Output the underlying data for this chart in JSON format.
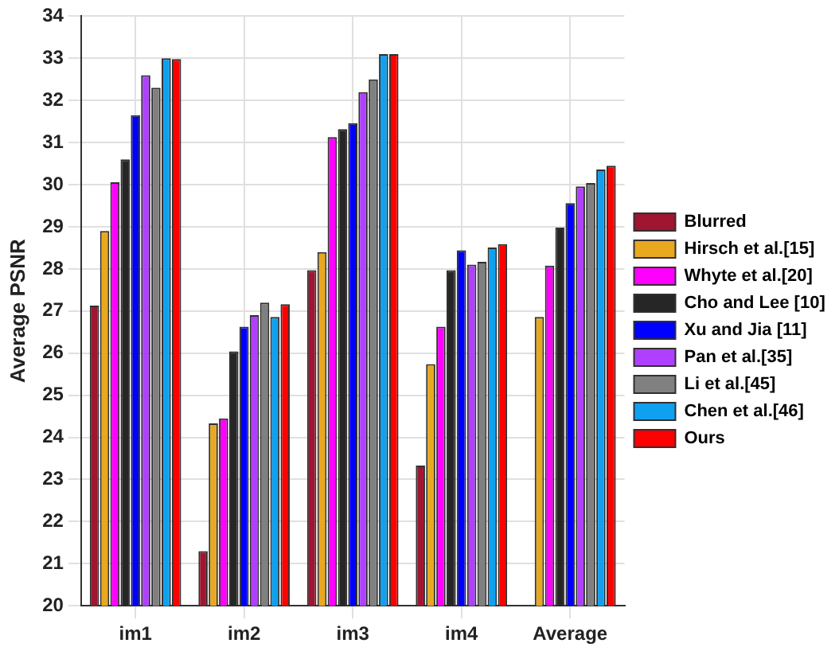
{
  "chart_data": {
    "type": "bar",
    "ylabel": "Average PSNR",
    "categories": [
      "im1",
      "im2",
      "im3",
      "im4",
      "Average"
    ],
    "series": [
      {
        "name": "Blurred",
        "color": "#a01530",
        "values": [
          27.13,
          21.3,
          27.97,
          23.33,
          null
        ]
      },
      {
        "name": "Hirsch et al.[15]",
        "color": "#e8a820",
        "values": [
          28.9,
          24.33,
          28.4,
          25.74,
          26.86
        ]
      },
      {
        "name": "Whyte et al.[20]",
        "color": "#ff00ff",
        "values": [
          30.06,
          24.45,
          31.13,
          26.63,
          28.08
        ]
      },
      {
        "name": "Cho and Lee [10]",
        "color": "#262626",
        "values": [
          30.6,
          26.04,
          31.32,
          27.97,
          28.98
        ]
      },
      {
        "name": "Xu and Jia [11]",
        "color": "#0000ff",
        "values": [
          31.65,
          26.63,
          31.46,
          28.44,
          29.56
        ]
      },
      {
        "name": "Pan et al.[35]",
        "color": "#b040ff",
        "values": [
          32.6,
          26.9,
          32.2,
          28.1,
          29.96
        ]
      },
      {
        "name": "Li et al.[45]",
        "color": "#808080",
        "values": [
          32.3,
          27.2,
          32.5,
          28.17,
          30.04
        ]
      },
      {
        "name": "Chen et al.[46]",
        "color": "#10a0f0",
        "values": [
          33.0,
          26.86,
          33.1,
          28.51,
          30.36
        ]
      },
      {
        "name": "Ours",
        "color": "#ff0000",
        "values": [
          32.98,
          27.16,
          33.1,
          28.59,
          30.45
        ]
      }
    ],
    "ylim": [
      20,
      34
    ],
    "yticks": [
      20,
      21,
      22,
      23,
      24,
      25,
      26,
      27,
      28,
      29,
      30,
      31,
      32,
      33,
      34
    ],
    "grid": true,
    "legend": "right"
  }
}
